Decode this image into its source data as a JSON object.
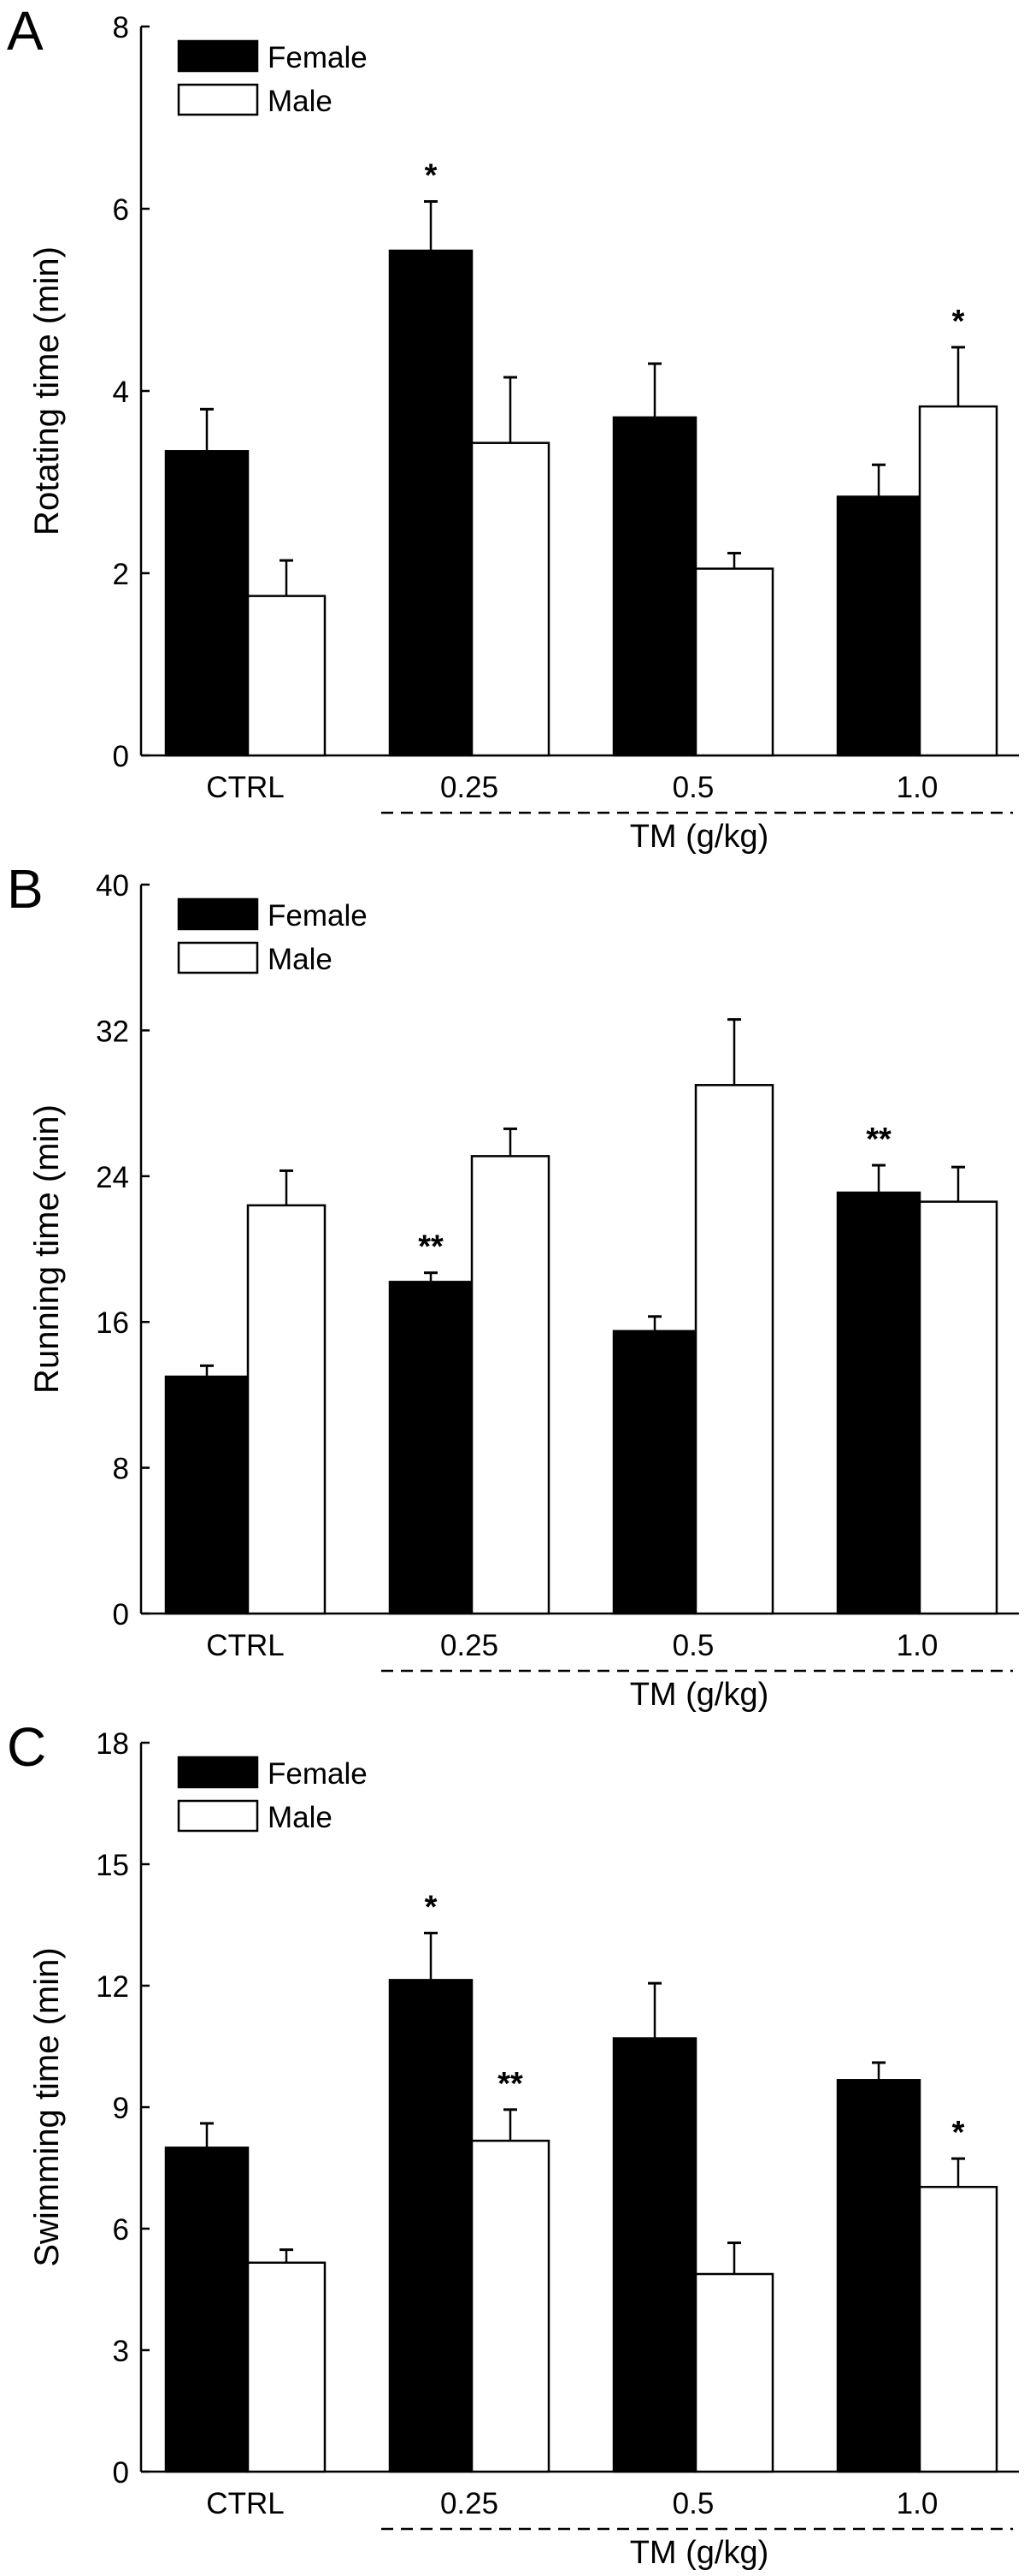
{
  "chart_data": [
    {
      "type": "bar",
      "panel_label": "A",
      "ylabel": "Rotating time  (min)",
      "xlabel": "TM (g/kg)",
      "ylim": [
        0,
        8
      ],
      "yticks": [
        "0",
        "2",
        "4",
        "6",
        "8"
      ],
      "categories": [
        "CTRL",
        "0.25",
        "0.5",
        "1.0"
      ],
      "legend": [
        "Female",
        "Male"
      ],
      "legend_position": "top-left",
      "series": [
        {
          "name": "Female",
          "values": [
            3.34,
            5.54,
            3.71,
            2.84
          ],
          "errors": [
            0.46,
            0.54,
            0.59,
            0.35
          ],
          "marks": [
            "",
            "*",
            "",
            ""
          ]
        },
        {
          "name": "Male",
          "values": [
            1.75,
            3.43,
            2.05,
            3.83
          ],
          "errors": [
            0.39,
            0.72,
            0.17,
            0.65
          ],
          "marks": [
            "",
            "",
            "",
            "*"
          ]
        }
      ]
    },
    {
      "type": "bar",
      "panel_label": "B",
      "ylabel": "Running  time (min)",
      "xlabel": "TM (g/kg)",
      "ylim": [
        0,
        40
      ],
      "yticks": [
        "0",
        "8",
        "16",
        "24",
        "32",
        "40"
      ],
      "categories": [
        "CTRL",
        "0.25",
        "0.5",
        "1.0"
      ],
      "legend": [
        "Female",
        "Male"
      ],
      "legend_position": "top-left",
      "series": [
        {
          "name": "Female",
          "values": [
            13.0,
            18.2,
            15.5,
            23.1
          ],
          "errors": [
            0.6,
            0.5,
            0.8,
            1.5
          ],
          "marks": [
            "",
            "**",
            "",
            "**"
          ]
        },
        {
          "name": "Male",
          "values": [
            22.4,
            25.1,
            29.0,
            22.6
          ],
          "errors": [
            1.9,
            1.5,
            3.6,
            1.9
          ],
          "marks": [
            "",
            "",
            "",
            ""
          ]
        }
      ]
    },
    {
      "type": "bar",
      "panel_label": "C",
      "ylabel": "Swimming  time (min)",
      "xlabel": "TM (g/kg)",
      "ylim": [
        0,
        18
      ],
      "yticks": [
        "0",
        "3",
        "6",
        "9",
        "12",
        "15",
        "18"
      ],
      "categories": [
        "CTRL",
        "0.25",
        "0.5",
        "1.0"
      ],
      "legend": [
        "Female",
        "Male"
      ],
      "legend_position": "top-left",
      "series": [
        {
          "name": "Female",
          "values": [
            8.0,
            12.14,
            10.7,
            9.67
          ],
          "errors": [
            0.6,
            1.16,
            1.36,
            0.43
          ],
          "marks": [
            "*",
            "*",
            "",
            ""
          ]
        },
        {
          "name": "Male",
          "values": [
            5.16,
            8.17,
            4.88,
            7.03
          ],
          "errors": [
            0.32,
            0.77,
            0.77,
            0.7
          ],
          "marks": [
            "",
            "**",
            "",
            "*"
          ]
        }
      ]
    }
  ]
}
